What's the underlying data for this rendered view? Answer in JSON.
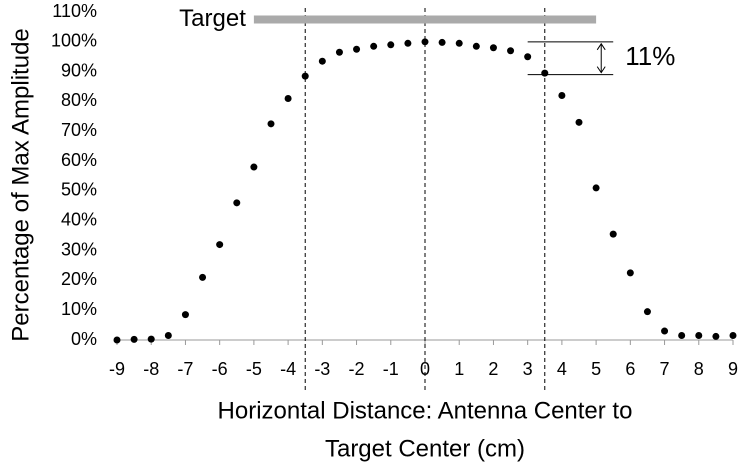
{
  "chart_data": {
    "type": "scatter",
    "ylabel": "Percentage of Max Amplitude",
    "xlabel": [
      "Horizontal Distance: Antenna Center to",
      "Target Center (cm)"
    ],
    "x": [
      -9,
      -8.5,
      -8,
      -7.5,
      -7,
      -6.5,
      -6,
      -5.5,
      -5,
      -4.5,
      -4,
      -3.5,
      -3,
      -2.5,
      -2,
      -1.5,
      -1,
      -0.5,
      0,
      0.5,
      1,
      1.5,
      2,
      2.5,
      3,
      3.5,
      4,
      4.5,
      5,
      5.5,
      6,
      6.5,
      7,
      7.5,
      8,
      8.5,
      9
    ],
    "values": [
      0,
      0.2,
      0.3,
      1.5,
      8.5,
      21,
      32,
      46,
      58,
      72.5,
      81,
      88.5,
      93.5,
      96.5,
      97.5,
      98.5,
      99,
      99.5,
      100,
      99.8,
      99.5,
      98.5,
      98,
      97,
      95,
      89.5,
      82,
      73,
      51,
      35.5,
      22.5,
      9.5,
      3,
      1.5,
      1.5,
      1.2,
      1.5
    ],
    "color": "#000000",
    "xlim": [
      -9,
      9
    ],
    "ylim": [
      0,
      110
    ],
    "xticks": [
      -9,
      -8,
      -7,
      -6,
      -5,
      -4,
      -3,
      -2,
      -1,
      0,
      1,
      2,
      3,
      4,
      5,
      6,
      7,
      8,
      9
    ],
    "yticks": [
      {
        "value": 0,
        "label": "0%"
      },
      {
        "value": 10,
        "label": "10%"
      },
      {
        "value": 20,
        "label": "20%"
      },
      {
        "value": 30,
        "label": "30%"
      },
      {
        "value": 40,
        "label": "40%"
      },
      {
        "value": 50,
        "label": "50%"
      },
      {
        "value": 60,
        "label": "60%"
      },
      {
        "value": 70,
        "label": "70%"
      },
      {
        "value": 80,
        "label": "80%"
      },
      {
        "value": 90,
        "label": "90%"
      },
      {
        "value": 100,
        "label": "100%"
      },
      {
        "value": 110,
        "label": "110%"
      }
    ],
    "reference_lines": [
      -3.5,
      0,
      3.5
    ],
    "target": {
      "label": "Target",
      "x": [
        -5,
        5
      ],
      "y": 107.5,
      "color": "#aaaaaa"
    },
    "bracket": {
      "label": "11%",
      "y": [
        100,
        89
      ],
      "x": [
        3,
        5.5
      ]
    }
  }
}
